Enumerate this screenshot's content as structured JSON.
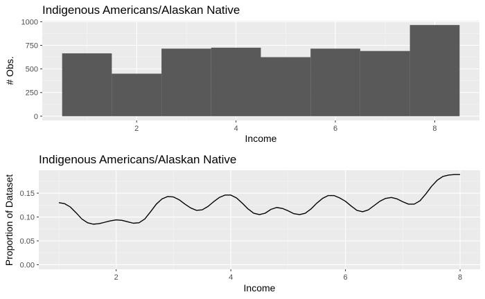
{
  "chart_data": [
    {
      "type": "bar",
      "title": "Indigenous Americans/Alaskan Native",
      "xlabel": "Income",
      "ylabel": "# Obs.",
      "categories": [
        1,
        2,
        3,
        4,
        5,
        6,
        7,
        8
      ],
      "values": [
        665,
        450,
        715,
        725,
        625,
        715,
        690,
        965
      ],
      "xlim": [
        0.1,
        8.9
      ],
      "ylim": [
        -45,
        1010
      ],
      "x_ticks": [
        2,
        4,
        6,
        8
      ],
      "y_ticks": [
        0,
        250,
        500,
        750,
        1000
      ],
      "x_tick_labels": [
        "2",
        "4",
        "6",
        "8"
      ],
      "y_tick_labels": [
        "0",
        "250",
        "500",
        "750",
        "1000"
      ],
      "grid": true,
      "colors": {
        "bar": "#595959",
        "panel": "#ebebeb",
        "grid": "#ffffff"
      }
    },
    {
      "type": "line",
      "title": "Indigenous Americans/Alaskan Native",
      "xlabel": "Income",
      "ylabel": "Proportion of Dataset",
      "x": [
        1.0,
        1.1,
        1.2,
        1.3,
        1.4,
        1.5,
        1.6,
        1.7,
        1.8,
        1.9,
        2.0,
        2.1,
        2.2,
        2.3,
        2.4,
        2.5,
        2.6,
        2.7,
        2.8,
        2.9,
        3.0,
        3.1,
        3.2,
        3.3,
        3.4,
        3.5,
        3.6,
        3.7,
        3.8,
        3.9,
        4.0,
        4.1,
        4.2,
        4.3,
        4.4,
        4.5,
        4.6,
        4.7,
        4.8,
        4.9,
        5.0,
        5.1,
        5.2,
        5.3,
        5.4,
        5.5,
        5.6,
        5.7,
        5.8,
        5.9,
        6.0,
        6.1,
        6.2,
        6.3,
        6.4,
        6.5,
        6.6,
        6.7,
        6.8,
        6.9,
        7.0,
        7.1,
        7.2,
        7.3,
        7.4,
        7.5,
        7.6,
        7.7,
        7.8,
        7.9,
        8.0
      ],
      "y": [
        0.13,
        0.128,
        0.121,
        0.109,
        0.096,
        0.088,
        0.085,
        0.086,
        0.089,
        0.092,
        0.094,
        0.093,
        0.09,
        0.087,
        0.088,
        0.096,
        0.111,
        0.127,
        0.138,
        0.143,
        0.142,
        0.136,
        0.127,
        0.119,
        0.114,
        0.115,
        0.122,
        0.132,
        0.141,
        0.146,
        0.146,
        0.14,
        0.129,
        0.117,
        0.108,
        0.105,
        0.108,
        0.116,
        0.12,
        0.118,
        0.113,
        0.107,
        0.105,
        0.108,
        0.117,
        0.129,
        0.139,
        0.145,
        0.145,
        0.14,
        0.133,
        0.123,
        0.114,
        0.111,
        0.115,
        0.124,
        0.133,
        0.139,
        0.141,
        0.138,
        0.132,
        0.127,
        0.127,
        0.134,
        0.148,
        0.164,
        0.177,
        0.185,
        0.188,
        0.189,
        0.189
      ],
      "xlim": [
        0.65,
        8.35
      ],
      "ylim": [
        -0.0095,
        0.198
      ],
      "x_ticks": [
        2,
        4,
        6,
        8
      ],
      "y_ticks": [
        0.0,
        0.05,
        0.1,
        0.15
      ],
      "x_tick_labels": [
        "2",
        "4",
        "6",
        "8"
      ],
      "y_tick_labels": [
        "0.00",
        "0.05",
        "0.10",
        "0.15"
      ],
      "grid": true,
      "colors": {
        "line": "#000000",
        "panel": "#ebebeb",
        "grid": "#ffffff"
      }
    }
  ]
}
